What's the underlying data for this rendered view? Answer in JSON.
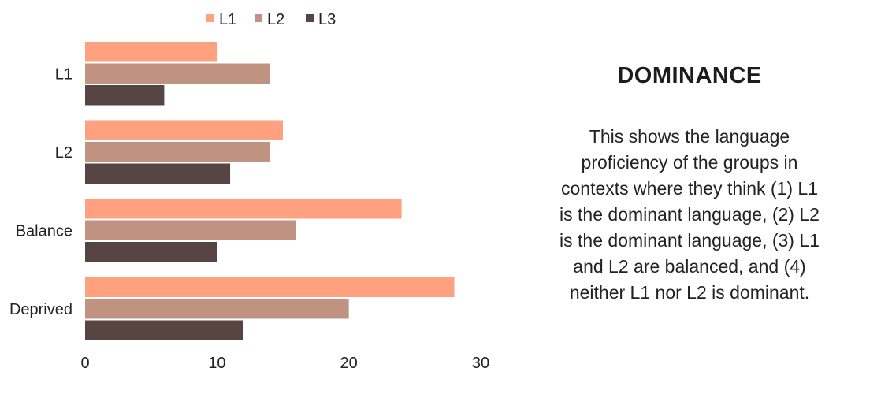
{
  "chart_data": {
    "type": "bar",
    "orientation": "horizontal",
    "categories": [
      "L1",
      "L2",
      "Balance",
      "Deprived"
    ],
    "series": [
      {
        "name": "L1",
        "values": [
          10,
          15,
          24,
          28
        ]
      },
      {
        "name": "L2",
        "values": [
          14,
          14,
          16,
          20
        ]
      },
      {
        "name": "L3",
        "values": [
          6,
          11,
          10,
          12
        ]
      }
    ],
    "xlim": [
      0,
      30
    ],
    "xticks": [
      "0",
      "10",
      "20",
      "30"
    ],
    "legend_position": "top",
    "grid": false,
    "colors": [
      "#FFA07F",
      "#C09280",
      "#564542"
    ]
  },
  "panel": {
    "title": "DOMINANCE",
    "text": "This shows the language proficiency of the groups in contexts where they think (1) L1 is the dominant language, (2) L2 is the dominant language, (3) L1 and L2 are balanced, and (4) neither L1 nor L2 is dominant."
  }
}
